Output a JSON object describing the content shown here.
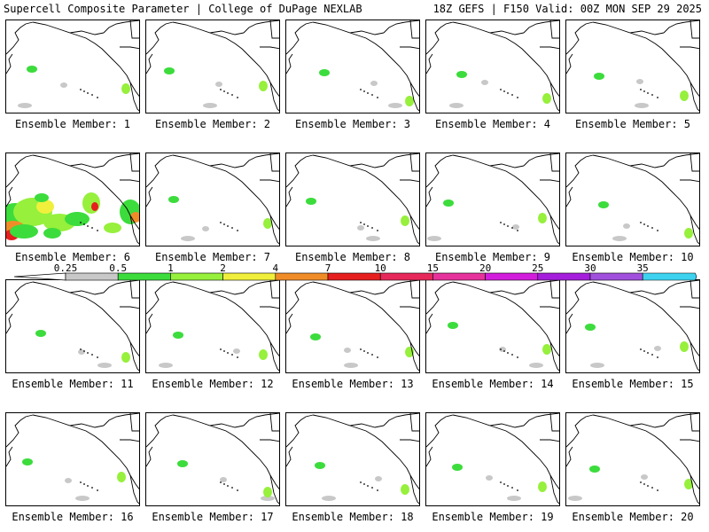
{
  "header": {
    "left": "Supercell Composite Parameter | College of DuPage NEXLAB",
    "right": "18Z GEFS | F150 Valid: 00Z MON SEP 29 2025"
  },
  "panels": [
    {
      "label": "Ensemble Member: 1",
      "intensity": "low"
    },
    {
      "label": "Ensemble Member: 2",
      "intensity": "low"
    },
    {
      "label": "Ensemble Member: 3",
      "intensity": "low"
    },
    {
      "label": "Ensemble Member: 4",
      "intensity": "low"
    },
    {
      "label": "Ensemble Member: 5",
      "intensity": "low"
    },
    {
      "label": "Ensemble Member: 6",
      "intensity": "high"
    },
    {
      "label": "Ensemble Member: 7",
      "intensity": "low"
    },
    {
      "label": "Ensemble Member: 8",
      "intensity": "low"
    },
    {
      "label": "Ensemble Member: 9",
      "intensity": "low"
    },
    {
      "label": "Ensemble Member: 10",
      "intensity": "low"
    },
    {
      "label": "Ensemble Member: 11",
      "intensity": "low"
    },
    {
      "label": "Ensemble Member: 12",
      "intensity": "low"
    },
    {
      "label": "Ensemble Member: 13",
      "intensity": "low"
    },
    {
      "label": "Ensemble Member: 14",
      "intensity": "low"
    },
    {
      "label": "Ensemble Member: 15",
      "intensity": "low"
    },
    {
      "label": "Ensemble Member: 16",
      "intensity": "low"
    },
    {
      "label": "Ensemble Member: 17",
      "intensity": "low"
    },
    {
      "label": "Ensemble Member: 18",
      "intensity": "low"
    },
    {
      "label": "Ensemble Member: 19",
      "intensity": "low"
    },
    {
      "label": "Ensemble Member: 20",
      "intensity": "low"
    }
  ],
  "colorbar": {
    "ticks": [
      "0.25",
      "0.5",
      "1",
      "2",
      "4",
      "7",
      "10",
      "15",
      "20",
      "25",
      "30",
      "35"
    ],
    "colors": [
      "#c8c8c8",
      "#3cdc3c",
      "#96f03c",
      "#f0f03c",
      "#f08c28",
      "#e61e1e",
      "#e6285a",
      "#e6329b",
      "#d21edc",
      "#a51edc",
      "#a050dc",
      "#3cd2f0"
    ]
  }
}
